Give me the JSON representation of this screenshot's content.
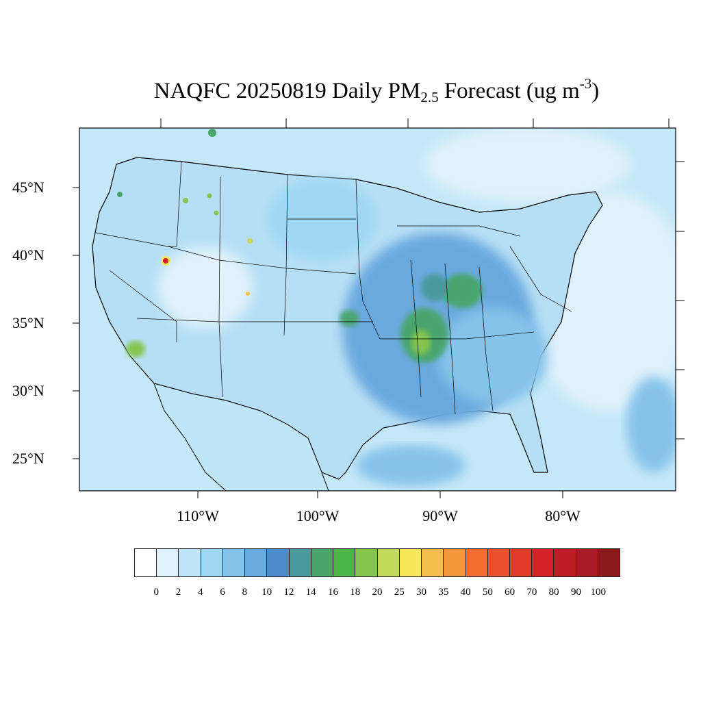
{
  "title": {
    "prefix": "NAQFC 20250819 Daily PM",
    "subscript": "2.5",
    "middle": " Forecast (ug m",
    "superscript": "-3",
    "suffix": ")"
  },
  "lat_labels": [
    "45°N",
    "40°N",
    "35°N",
    "30°N",
    "25°N"
  ],
  "lon_labels": [
    "110°W",
    "100°W",
    "90°W",
    "80°W"
  ],
  "colorbar": {
    "colors": [
      "#ffffff",
      "#dff1fb",
      "#bfe6f8",
      "#a0d8f4",
      "#86c3ea",
      "#6aa9de",
      "#4b8cca",
      "#4a9a9c",
      "#4aa56d",
      "#4cb548",
      "#86c54d",
      "#c2d95a",
      "#f7e85a",
      "#f8be4d",
      "#f5973d",
      "#f26c30",
      "#e9502e",
      "#df3a2a",
      "#d42029",
      "#bd1c26",
      "#a91c23",
      "#8c1919"
    ],
    "levels": [
      "0",
      "2",
      "4",
      "6",
      "8",
      "10",
      "12",
      "14",
      "16",
      "18",
      "20",
      "25",
      "30",
      "35",
      "40",
      "50",
      "60",
      "70",
      "80",
      "90",
      "100"
    ]
  },
  "map": {
    "ocean_color": "#c5e8f8",
    "land_base_color": "#b6dff5",
    "hotspot_colors": [
      "#4aa56d",
      "#86c54d",
      "#f7e85a",
      "#f26c30",
      "#d42029"
    ]
  }
}
